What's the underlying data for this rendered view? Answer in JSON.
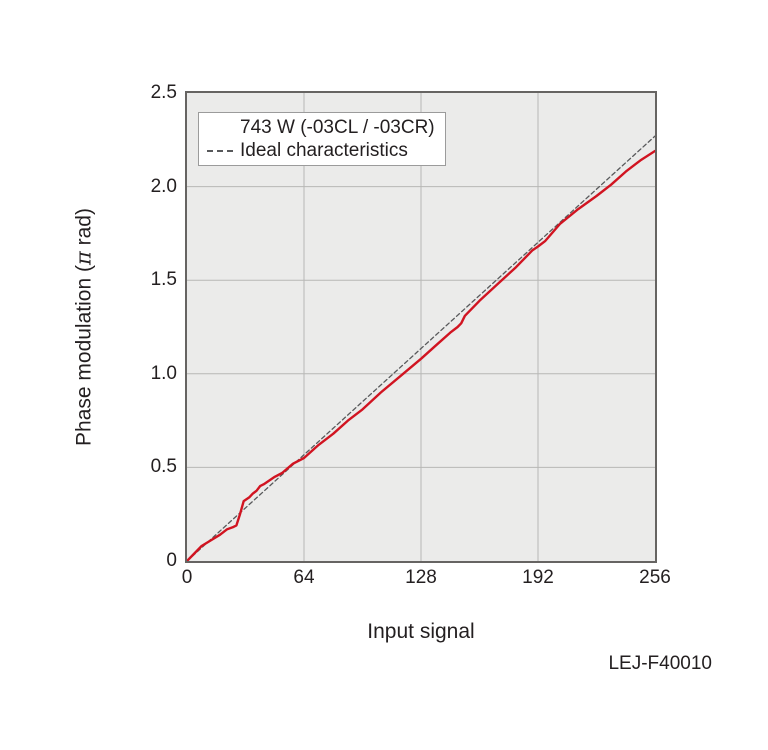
{
  "figure": {
    "code": "LEJ-F40010"
  },
  "colors": {
    "plot_bg": "#ebebea",
    "grid": "#b7b7b5",
    "plot_border": "#666462",
    "text": "#231f20",
    "measured_red": "#d11421",
    "ideal_gray": "#58595b"
  },
  "ylabel_parts": {
    "before": "Phase modulation (",
    "pi": "π",
    "after": " rad)"
  },
  "chart_data": {
    "type": "line",
    "title": "",
    "xlabel": "Input signal",
    "ylabel": "Phase modulation (π rad)",
    "xlim": [
      0,
      256
    ],
    "ylim": [
      0,
      2.5
    ],
    "grid": true,
    "legend_position": "top-left",
    "x_ticks": [
      {
        "v": 0,
        "label": "0"
      },
      {
        "v": 64,
        "label": "64"
      },
      {
        "v": 128,
        "label": "128"
      },
      {
        "v": 192,
        "label": "192"
      },
      {
        "v": 256,
        "label": "256"
      }
    ],
    "y_ticks": [
      {
        "v": 0,
        "label": "0"
      },
      {
        "v": 0.5,
        "label": "0.5"
      },
      {
        "v": 1.0,
        "label": "1.0"
      },
      {
        "v": 1.5,
        "label": "1.5"
      },
      {
        "v": 2.0,
        "label": "2.0"
      },
      {
        "v": 2.5,
        "label": "2.5"
      }
    ],
    "series": [
      {
        "name": "743 W (-03CL / -03CR)",
        "color": "#d11421",
        "style": "solid",
        "width": 2.4,
        "points": [
          [
            0,
            0
          ],
          [
            4,
            0.04
          ],
          [
            8,
            0.08
          ],
          [
            13,
            0.11
          ],
          [
            18,
            0.14
          ],
          [
            22,
            0.17
          ],
          [
            25,
            0.18
          ],
          [
            27,
            0.19
          ],
          [
            29,
            0.25
          ],
          [
            31,
            0.32
          ],
          [
            34,
            0.34
          ],
          [
            36,
            0.36
          ],
          [
            38,
            0.375
          ],
          [
            40,
            0.4
          ],
          [
            42,
            0.41
          ],
          [
            45,
            0.43
          ],
          [
            48,
            0.45
          ],
          [
            52,
            0.47
          ],
          [
            58,
            0.52
          ],
          [
            64,
            0.55
          ],
          [
            72,
            0.62
          ],
          [
            80,
            0.68
          ],
          [
            88,
            0.75
          ],
          [
            96,
            0.81
          ],
          [
            106,
            0.9
          ],
          [
            117,
            0.99
          ],
          [
            128,
            1.08
          ],
          [
            136,
            1.15
          ],
          [
            144,
            1.22
          ],
          [
            148,
            1.25
          ],
          [
            150,
            1.27
          ],
          [
            152,
            1.31
          ],
          [
            156,
            1.35
          ],
          [
            160,
            1.39
          ],
          [
            170,
            1.48
          ],
          [
            180,
            1.57
          ],
          [
            189,
            1.66
          ],
          [
            192,
            1.68
          ],
          [
            196,
            1.71
          ],
          [
            204,
            1.8
          ],
          [
            214,
            1.88
          ],
          [
            224,
            1.95
          ],
          [
            232,
            2.01
          ],
          [
            240,
            2.08
          ],
          [
            248,
            2.14
          ],
          [
            256,
            2.19
          ]
        ]
      },
      {
        "name": "Ideal characteristics",
        "color": "#58595b",
        "style": "dashed",
        "width": 1.3,
        "points": [
          [
            0,
            0
          ],
          [
            256,
            2.27
          ]
        ]
      }
    ]
  }
}
